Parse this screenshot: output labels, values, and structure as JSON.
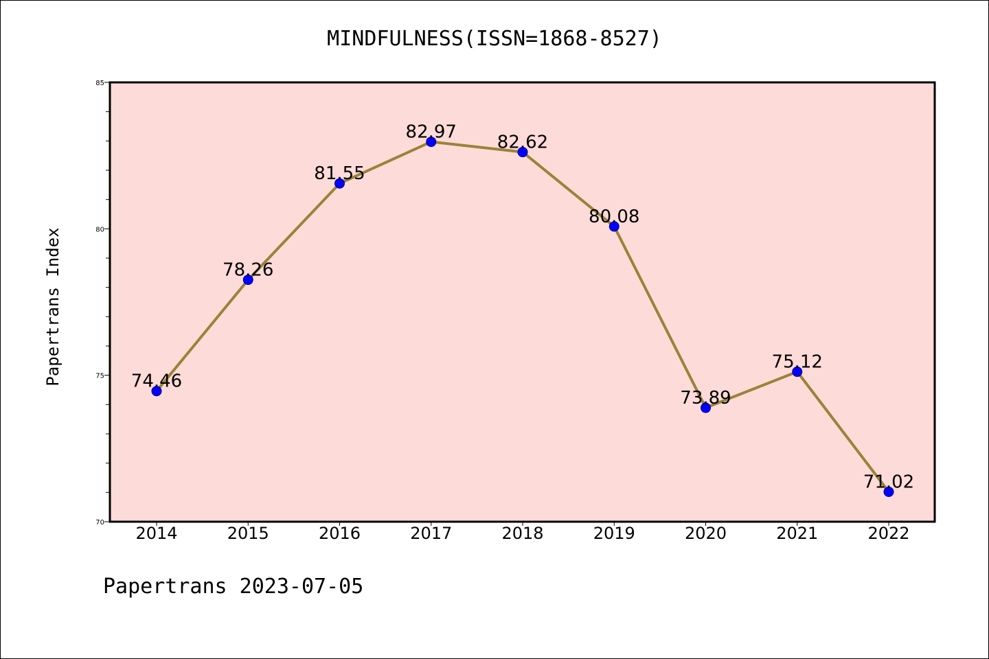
{
  "chart_data": {
    "type": "line",
    "title": "MINDFULNESS(ISSN=1868-8527)",
    "xlabel": "",
    "ylabel": "Papertrans Index",
    "categories": [
      "2014",
      "2015",
      "2016",
      "2017",
      "2018",
      "2019",
      "2020",
      "2021",
      "2022"
    ],
    "series": [
      {
        "values": [
          74.46,
          78.26,
          81.55,
          82.97,
          82.62,
          80.08,
          73.89,
          75.12,
          71.02
        ],
        "labels": [
          "74.46",
          "78.26",
          "81.55",
          "82.97",
          "82.62",
          "80.08",
          "73.89",
          "75.12",
          "71.02"
        ]
      }
    ],
    "ylim": [
      70,
      85
    ],
    "yticks": [
      "70",
      "75",
      "80",
      "85"
    ],
    "grid": false,
    "legend": "none",
    "footer": "Papertrans 2023-07-05",
    "colors": {
      "plot_background": "#fddbd8",
      "line": "#9a8339",
      "marker": "#0000ff",
      "marker_edge": "#000080"
    }
  }
}
